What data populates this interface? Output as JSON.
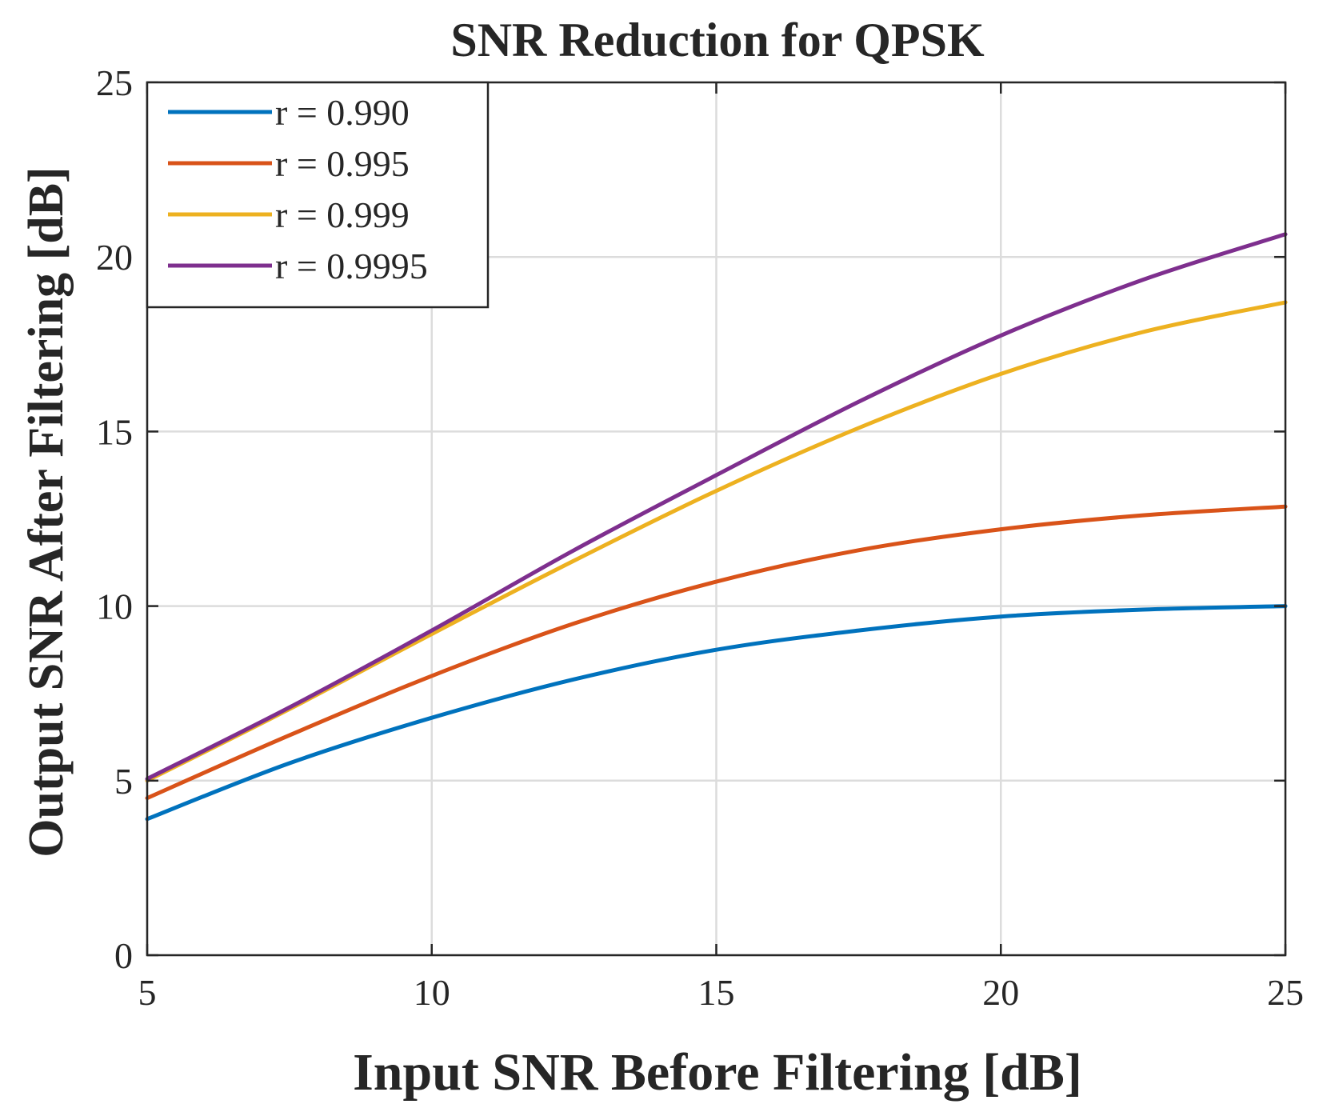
{
  "chart_data": {
    "type": "line",
    "title": "SNR Reduction for QPSK",
    "xlabel": "Input SNR Before Filtering [dB]",
    "ylabel": "Output SNR After Filtering [dB]",
    "xlim": [
      5,
      25
    ],
    "ylim": [
      0,
      25
    ],
    "xticks": [
      5,
      10,
      15,
      20,
      25
    ],
    "yticks": [
      0,
      5,
      10,
      15,
      20,
      25
    ],
    "xtick_labels": [
      "5",
      "10",
      "15",
      "20",
      "25"
    ],
    "ytick_labels": [
      "0",
      "5",
      "10",
      "15",
      "20",
      "25"
    ],
    "grid": true,
    "legend_location": "top-left",
    "x": [
      5,
      7.5,
      10,
      12.5,
      15,
      17.5,
      20,
      22.5,
      25
    ],
    "series": [
      {
        "name": "r = 0.990",
        "color": "#0072BD",
        "values": [
          3.9,
          5.5,
          6.8,
          7.9,
          8.75,
          9.3,
          9.7,
          9.9,
          10.0
        ]
      },
      {
        "name": "r = 0.995",
        "color": "#D95319",
        "values": [
          4.5,
          6.3,
          8.0,
          9.5,
          10.7,
          11.6,
          12.2,
          12.6,
          12.85
        ]
      },
      {
        "name": "r = 0.999",
        "color": "#EDB120",
        "values": [
          5.0,
          7.05,
          9.2,
          11.3,
          13.3,
          15.1,
          16.65,
          17.85,
          18.7
        ]
      },
      {
        "name": "r = 0.9995",
        "color": "#7E2F8E",
        "values": [
          5.05,
          7.1,
          9.3,
          11.6,
          13.75,
          15.85,
          17.75,
          19.35,
          20.65
        ]
      }
    ]
  }
}
